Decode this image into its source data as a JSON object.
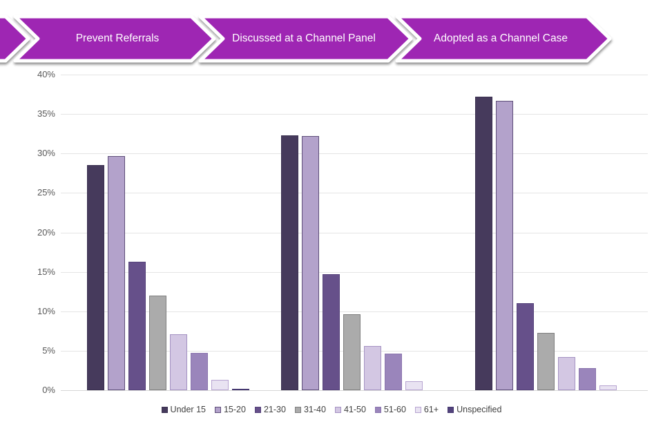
{
  "banner": {
    "color": "#9E28B3",
    "segments": [
      {
        "label": "Prevent Referrals"
      },
      {
        "label": "Discussed at a Channel Panel"
      },
      {
        "label": "Adopted as a Channel Case"
      }
    ]
  },
  "chart_data": {
    "type": "bar",
    "title": "",
    "categories": [
      "Prevent Referrals",
      "Discussed at a Channel Panel",
      "Adopted as a Channel Case"
    ],
    "series": [
      {
        "name": "Under 15",
        "fill": "#463A5C",
        "border": "#3A3050",
        "values": [
          28.5,
          32.3,
          37.2
        ]
      },
      {
        "name": "15-20",
        "fill": "#B3A2CB",
        "border": "#5E4E79",
        "values": [
          29.7,
          32.2,
          36.7
        ]
      },
      {
        "name": "21-30",
        "fill": "#66508A",
        "border": "#55427A",
        "values": [
          16.3,
          14.7,
          11.0
        ]
      },
      {
        "name": "31-40",
        "fill": "#ABABAB",
        "border": "#7F7F7F",
        "values": [
          12.0,
          9.6,
          7.3
        ]
      },
      {
        "name": "41-50",
        "fill": "#D3C7E3",
        "border": "#A492C2",
        "values": [
          7.1,
          5.6,
          4.2
        ]
      },
      {
        "name": "51-60",
        "fill": "#9A85BB",
        "border": "#8A74AE",
        "values": [
          4.7,
          4.6,
          2.8
        ]
      },
      {
        "name": "61+",
        "fill": "#E9E3F2",
        "border": "#B7A4D1",
        "values": [
          1.3,
          1.1,
          0.6
        ]
      },
      {
        "name": "Unspecified",
        "fill": "#52437C",
        "border": "#453870",
        "values": [
          0.2,
          0.0,
          0.0
        ]
      }
    ],
    "ylim": [
      0,
      40
    ],
    "ytick_step": 5,
    "ytick_suffix": "%",
    "grid": true,
    "legend_position": "bottom"
  }
}
